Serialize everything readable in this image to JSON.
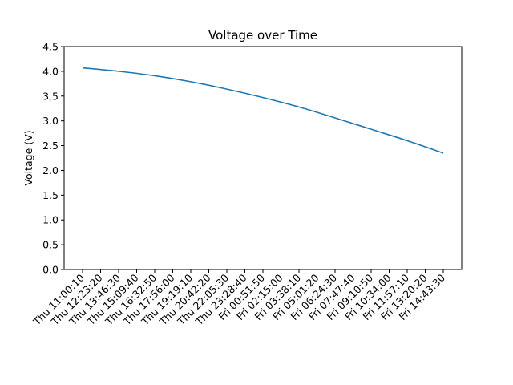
{
  "chart_data": {
    "type": "line",
    "title": "Voltage over Time",
    "xlabel": "",
    "ylabel": "Voltage (V)",
    "x_tick_labels": [
      "Thu 11:00:10",
      "Thu 12:23:20",
      "Thu 13:46:30",
      "Thu 15:09:40",
      "Thu 16:32:50",
      "Thu 17:56:00",
      "Thu 19:19:10",
      "Thu 20:42:20",
      "Thu 22:05:30",
      "Thu 23:28:40",
      "Fri 00:51:50",
      "Fri 02:15:00",
      "Fri 03:38:10",
      "Fri 05:01:20",
      "Fri 06:24:30",
      "Fri 07:47:40",
      "Fri 09:10:50",
      "Fri 10:34:00",
      "Fri 11:57:10",
      "Fri 13:20:20",
      "Fri 14:43:30"
    ],
    "y_ticks": [
      0.0,
      0.5,
      1.0,
      1.5,
      2.0,
      2.5,
      3.0,
      3.5,
      4.0,
      4.5
    ],
    "y_tick_labels": [
      "0.0",
      "0.5",
      "1.0",
      "1.5",
      "2.0",
      "2.5",
      "3.0",
      "3.5",
      "4.0",
      "4.5"
    ],
    "ylim": [
      0.0,
      4.5
    ],
    "grid": false,
    "series": [
      {
        "color": "#1f77b4",
        "points": [
          {
            "x": "Thu 11:00:10",
            "y": 4.07
          },
          {
            "x": "Thu 13:46:30",
            "y": 4.0
          },
          {
            "x": "Thu 16:32:50",
            "y": 3.91
          },
          {
            "x": "Thu 19:19:10",
            "y": 3.79
          },
          {
            "x": "Thu 22:05:30",
            "y": 3.64
          },
          {
            "x": "Fri 00:51:50",
            "y": 3.47
          },
          {
            "x": "Fri 03:38:10",
            "y": 3.28
          },
          {
            "x": "Fri 06:24:30",
            "y": 3.06
          },
          {
            "x": "Fri 09:10:50",
            "y": 2.83
          },
          {
            "x": "Fri 11:57:10",
            "y": 2.6
          },
          {
            "x": "Fri 14:43:30",
            "y": 2.35
          }
        ]
      }
    ]
  }
}
